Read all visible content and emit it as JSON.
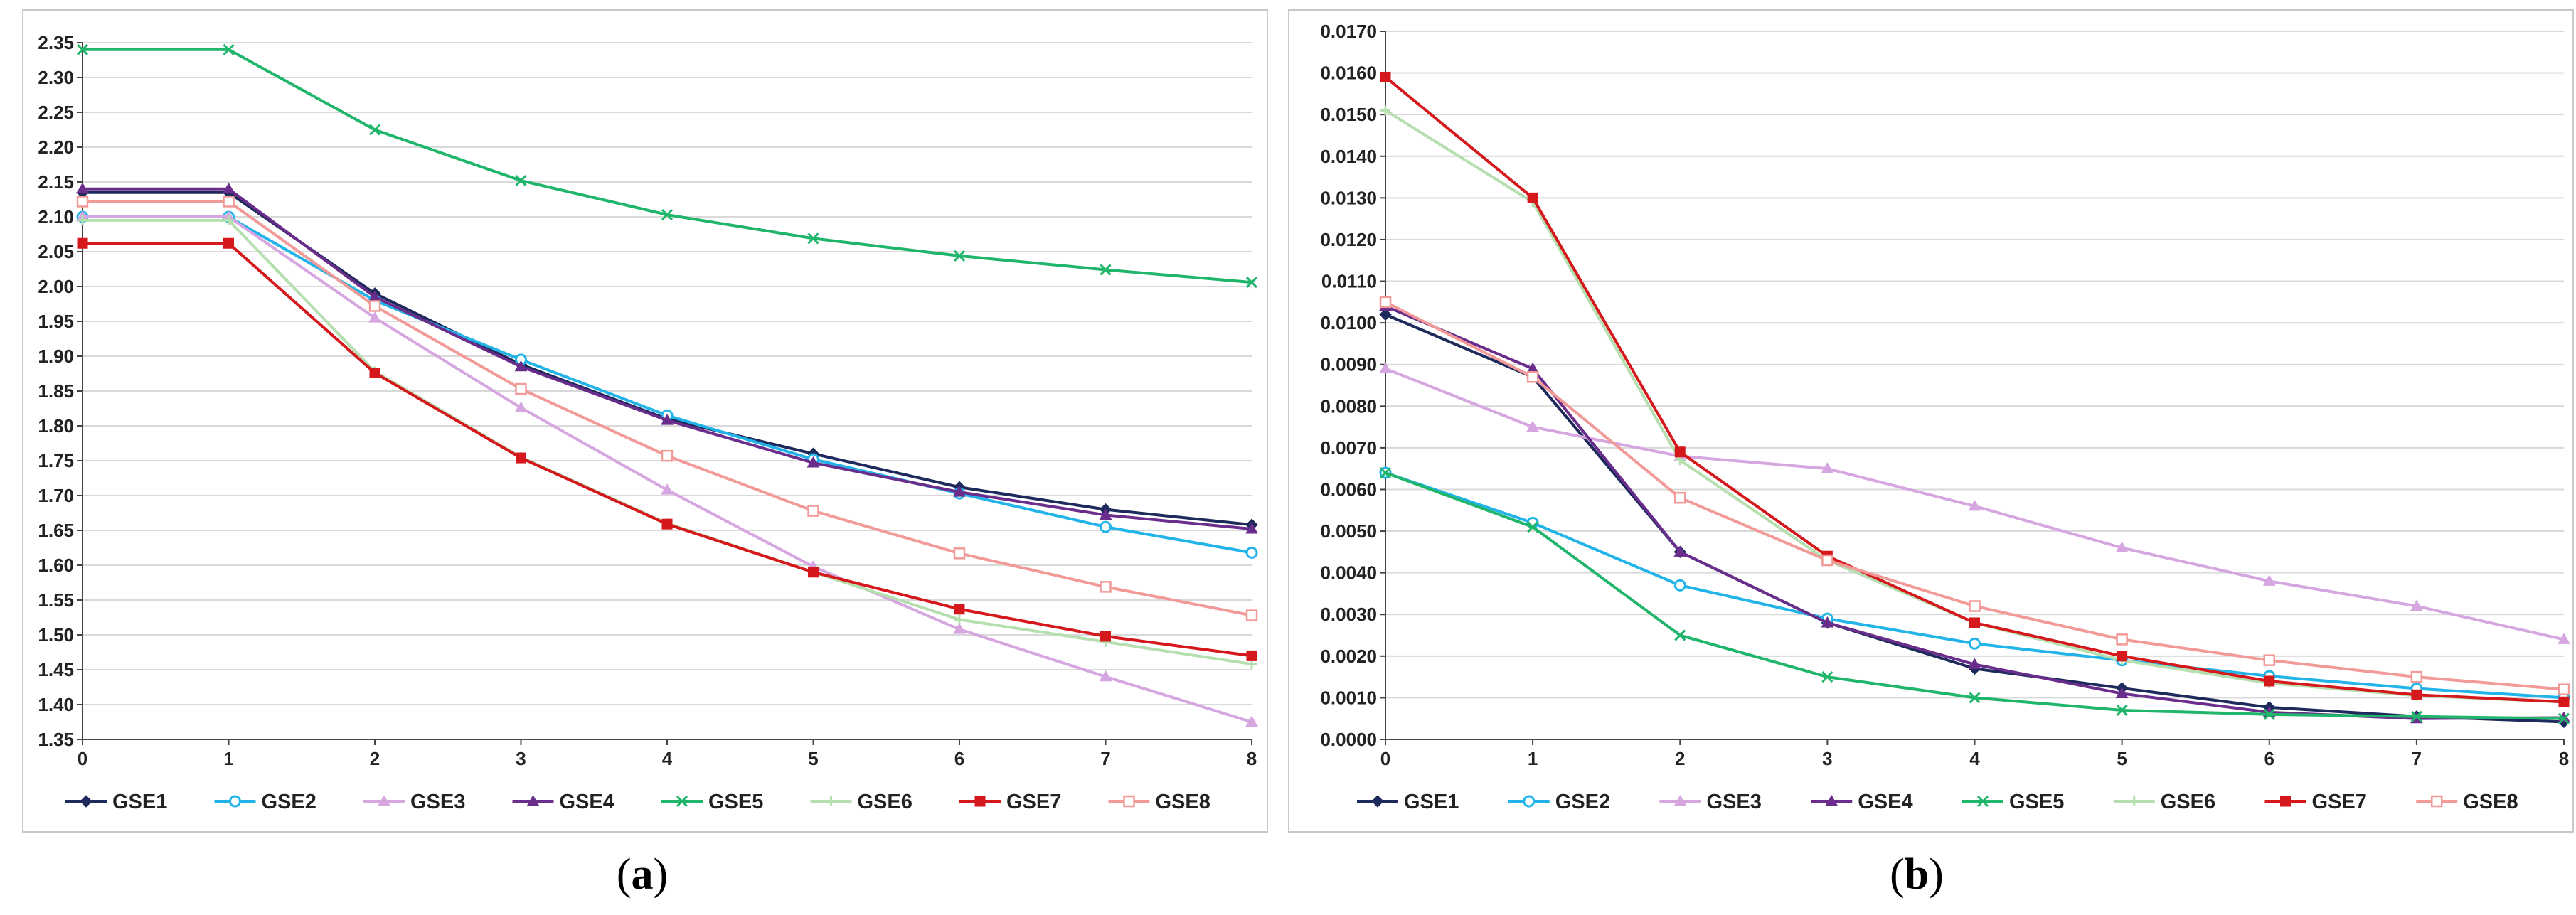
{
  "colors": {
    "GSE1": "#1f2a5c",
    "GSE2": "#22b4e8",
    "GSE3": "#d6a6e0",
    "GSE4": "#6a2d8c",
    "GSE5": "#1fb56a",
    "GSE6": "#b5dfae",
    "GSE7": "#d4181c",
    "GSE8": "#f29a98"
  },
  "chart_data": [
    {
      "type": "line",
      "caption": {
        "open": "(",
        "letter": "a",
        "close": ")"
      },
      "x": [
        0,
        1,
        2,
        3,
        4,
        5,
        6,
        7,
        8
      ],
      "xlim": [
        0,
        8
      ],
      "ylim": [
        1.35,
        2.35
      ],
      "yticks": [
        "1.35",
        "1.40",
        "1.45",
        "1.50",
        "1.55",
        "1.60",
        "1.65",
        "1.70",
        "1.75",
        "1.80",
        "1.85",
        "1.90",
        "1.95",
        "2.00",
        "2.05",
        "2.10",
        "2.15",
        "2.20",
        "2.25",
        "2.30",
        "2.35"
      ],
      "xticks": [
        "0",
        "1",
        "2",
        "3",
        "4",
        "5",
        "6",
        "7",
        "8"
      ],
      "grid": true,
      "legend_position": "bottom",
      "series": [
        {
          "name": "GSE1",
          "marker": "diamond",
          "values": [
            2.135,
            2.135,
            1.99,
            1.888,
            1.81,
            1.76,
            1.712,
            1.68,
            1.658
          ]
        },
        {
          "name": "GSE2",
          "marker": "circle-open",
          "values": [
            2.1,
            2.1,
            1.98,
            1.895,
            1.815,
            1.752,
            1.703,
            1.655,
            1.618
          ]
        },
        {
          "name": "GSE3",
          "marker": "triangle",
          "values": [
            2.1,
            2.1,
            1.955,
            1.826,
            1.708,
            1.598,
            1.508,
            1.44,
            1.375
          ]
        },
        {
          "name": "GSE4",
          "marker": "triangle",
          "values": [
            2.14,
            2.14,
            1.985,
            1.885,
            1.808,
            1.747,
            1.705,
            1.672,
            1.652
          ]
        },
        {
          "name": "GSE5",
          "marker": "x",
          "values": [
            2.34,
            2.34,
            2.225,
            2.152,
            2.103,
            2.069,
            2.044,
            2.024,
            2.006
          ]
        },
        {
          "name": "GSE6",
          "marker": "plus",
          "values": [
            2.095,
            2.095,
            1.878,
            1.755,
            1.66,
            1.59,
            1.522,
            1.49,
            1.458
          ]
        },
        {
          "name": "GSE7",
          "marker": "square",
          "values": [
            2.062,
            2.062,
            1.876,
            1.754,
            1.659,
            1.59,
            1.537,
            1.498,
            1.47
          ]
        },
        {
          "name": "GSE8",
          "marker": "square-open",
          "values": [
            2.122,
            2.122,
            1.972,
            1.853,
            1.757,
            1.678,
            1.617,
            1.569,
            1.528
          ]
        }
      ]
    },
    {
      "type": "line",
      "caption": {
        "open": "(",
        "letter": "b",
        "close": ")"
      },
      "x": [
        0,
        1,
        2,
        3,
        4,
        5,
        6,
        7,
        8
      ],
      "xlim": [
        0,
        8
      ],
      "ylim": [
        0.0,
        0.017
      ],
      "yticks": [
        "0.0000",
        "0.0010",
        "0.0020",
        "0.0030",
        "0.0040",
        "0.0050",
        "0.0060",
        "0.0070",
        "0.0080",
        "0.0090",
        "0.0100",
        "0.0110",
        "0.0120",
        "0.0130",
        "0.0140",
        "0.0150",
        "0.0160",
        "0.0170"
      ],
      "xticks": [
        "0",
        "1",
        "2",
        "3",
        "4",
        "5",
        "6",
        "7",
        "8"
      ],
      "grid": true,
      "legend_position": "bottom",
      "series": [
        {
          "name": "GSE1",
          "marker": "diamond",
          "values": [
            0.0102,
            0.0087,
            0.0045,
            0.0028,
            0.0017,
            0.00123,
            0.00077,
            0.00055,
            0.00042
          ]
        },
        {
          "name": "GSE2",
          "marker": "circle-open",
          "values": [
            0.0064,
            0.0052,
            0.0037,
            0.0029,
            0.0023,
            0.0019,
            0.00152,
            0.00122,
            0.001
          ]
        },
        {
          "name": "GSE3",
          "marker": "triangle",
          "values": [
            0.0089,
            0.0075,
            0.0068,
            0.0065,
            0.0056,
            0.0046,
            0.0038,
            0.0032,
            0.0024
          ]
        },
        {
          "name": "GSE4",
          "marker": "triangle",
          "values": [
            0.0104,
            0.0089,
            0.0045,
            0.0028,
            0.0018,
            0.0011,
            0.00065,
            0.0005,
            0.00052
          ]
        },
        {
          "name": "GSE5",
          "marker": "x",
          "values": [
            0.0064,
            0.0051,
            0.0025,
            0.0015,
            0.001,
            0.0007,
            0.0006,
            0.00055,
            0.0005
          ]
        },
        {
          "name": "GSE6",
          "marker": "plus",
          "values": [
            0.0151,
            0.0129,
            0.0067,
            0.0043,
            0.0028,
            0.0019,
            0.00135,
            0.00105,
            0.0009
          ]
        },
        {
          "name": "GSE7",
          "marker": "square",
          "values": [
            0.0159,
            0.013,
            0.0069,
            0.0044,
            0.0028,
            0.002,
            0.0014,
            0.00107,
            0.0009
          ]
        },
        {
          "name": "GSE8",
          "marker": "square-open",
          "values": [
            0.0105,
            0.0087,
            0.0058,
            0.0043,
            0.0032,
            0.0024,
            0.0019,
            0.0015,
            0.0012
          ]
        }
      ]
    }
  ]
}
